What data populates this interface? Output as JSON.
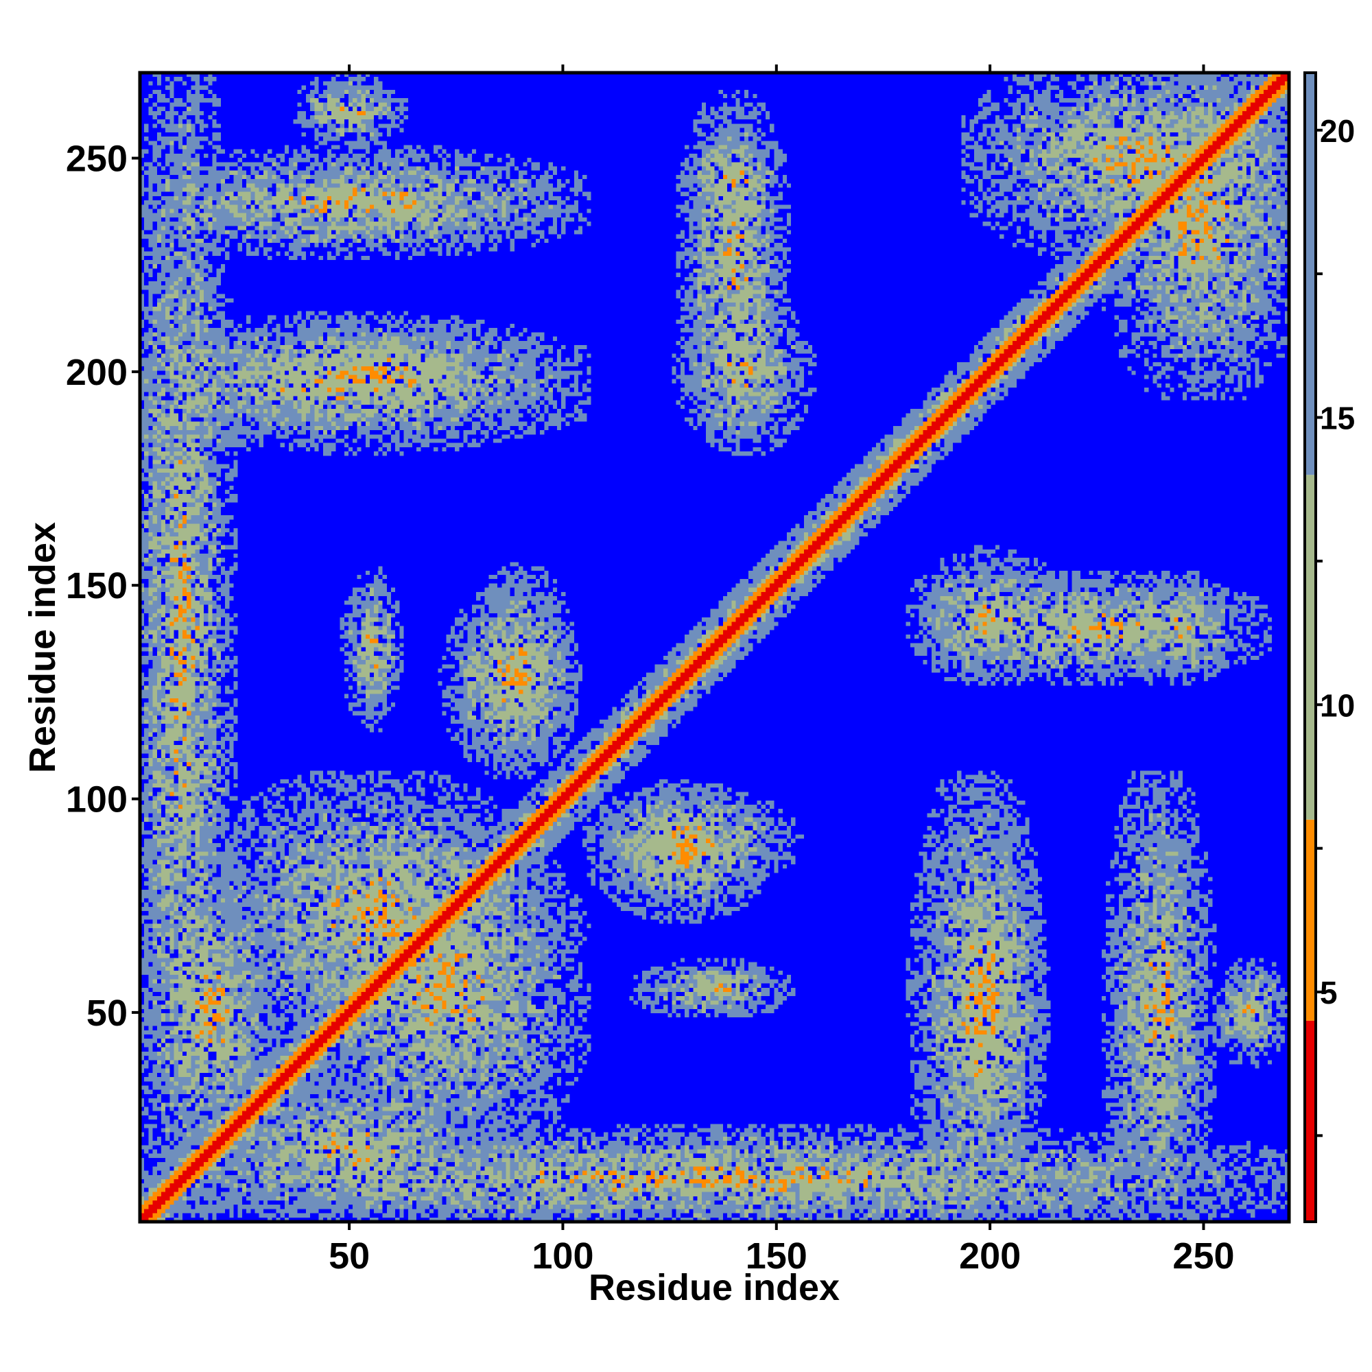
{
  "chart_data": {
    "type": "heatmap",
    "title": "",
    "xlabel": "Residue index",
    "ylabel": "Residue index",
    "n_residues": 270,
    "xlim": [
      1,
      270
    ],
    "ylim": [
      1,
      270
    ],
    "x_ticks": [
      50,
      100,
      150,
      200,
      250
    ],
    "y_ticks": [
      50,
      100,
      150,
      200,
      250
    ],
    "colorbar": {
      "range": [
        1,
        21
      ],
      "ticks": [
        5,
        10,
        15,
        20
      ],
      "colors": {
        "near": "#e60000",
        "close": "#ff8c00",
        "mid": "#a6b98c",
        "far": "#6f8fbd",
        "background": "#0000ff"
      }
    },
    "symmetric": true,
    "description_of_values": "Distance-like matrix: diagonal lowest (red), contact bands and off-diagonal clusters medium (orange/green), elsewhere saturated (blue).",
    "contact_regions": [
      {
        "x_range": [
          1,
          20
        ],
        "y_range": [
          1,
          270
        ],
        "note": "band along x≈1-15 with contacts at y≈50,100,145,200,240"
      },
      {
        "x_range": [
          20,
          80
        ],
        "y_range": [
          5,
          30
        ]
      },
      {
        "x_range": [
          20,
          90
        ],
        "y_range": [
          45,
          100
        ]
      },
      {
        "x_range": [
          50,
          60
        ],
        "y_range": [
          120,
          150
        ]
      },
      {
        "x_range": [
          75,
          100
        ],
        "y_range": [
          110,
          145
        ]
      },
      {
        "x_range": [
          110,
          150
        ],
        "y_range": [
          80,
          100
        ]
      },
      {
        "x_range": [
          130,
          155
        ],
        "y_range": [
          185,
          215
        ]
      },
      {
        "x_range": [
          130,
          150
        ],
        "y_range": [
          235,
          255
        ]
      },
      {
        "x_range": [
          20,
          90
        ],
        "y_range": [
          190,
          210
        ]
      },
      {
        "x_range": [
          40,
          60
        ],
        "y_range": [
          255,
          268
        ]
      },
      {
        "x_range": [
          185,
          210
        ],
        "y_range": [
          1,
          100
        ]
      },
      {
        "x_range": [
          230,
          250
        ],
        "y_range": [
          1,
          100
        ]
      },
      {
        "x_range": [
          190,
          260
        ],
        "y_range": [
          130,
          150
        ]
      },
      {
        "x_range": [
          230,
          270
        ],
        "y_range": [
          200,
          270
        ]
      }
    ]
  }
}
